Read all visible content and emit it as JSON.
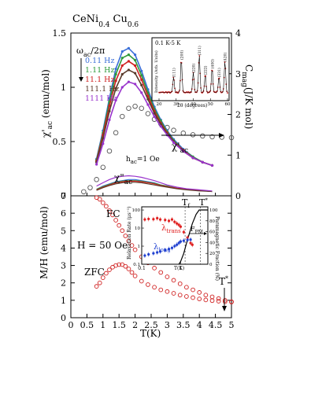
{
  "chart_data": [
    {
      "type": "line",
      "title": "CeNi0.4Cu0.6",
      "title_parts": {
        "base1": "CeNi",
        "sub1": "0.4",
        "base2": "Cu",
        "sub2": "0.6"
      },
      "xlim": [
        0,
        5
      ],
      "ylim": [
        0,
        1.5
      ],
      "ylabel": "χ'ac (emu/mol)",
      "ylabel_parts": {
        "base": "χ'",
        "sub": "ac",
        "unit": " (emu/mol)"
      },
      "y_ticks": [
        "0",
        "0.5",
        "1",
        "1.5"
      ],
      "y2lim": [
        0,
        4
      ],
      "y2label": "Cmag(J/K mol)",
      "y2label_parts": {
        "base": "C",
        "sub": "mag",
        "unit": "(J/K mol)"
      },
      "y2_ticks": [
        "0",
        "1",
        "2",
        "3",
        "4"
      ],
      "legend_title": "ωac/2π",
      "legend_title_parts": {
        "base": "ω",
        "sub": "ac",
        "rest": "/2π"
      },
      "hac_label": "hac=1 Oe",
      "hac_parts": {
        "base": "h",
        "sub": "ac",
        "rest": "=1 Oe"
      },
      "chi1_label": "χ'ac",
      "chi1_parts": {
        "base": "χ'",
        "sub": "ac"
      },
      "chi2_label": "χ\"ac",
      "chi2_parts": {
        "base": "χ\"",
        "sub": "ac"
      },
      "chi1_series": [
        {
          "name": "0.11 Hz",
          "color": "#3a6fd8",
          "x": [
            0.8,
            1.0,
            1.2,
            1.4,
            1.6,
            1.8,
            2.0,
            2.2,
            2.4,
            2.6,
            2.8,
            3.0,
            3.2,
            3.5,
            3.8,
            4.1,
            4.4
          ],
          "y": [
            0.34,
            0.6,
            0.9,
            1.17,
            1.33,
            1.36,
            1.3,
            1.15,
            0.98,
            0.82,
            0.7,
            0.6,
            0.52,
            0.43,
            0.36,
            0.31,
            0.28
          ]
        },
        {
          "name": "1.11 Hz",
          "color": "#2e9a3a",
          "x": [
            0.8,
            1.0,
            1.2,
            1.4,
            1.6,
            1.8,
            2.0,
            2.2,
            2.4,
            2.6,
            2.8,
            3.0,
            3.2,
            3.5,
            3.8,
            4.1,
            4.4
          ],
          "y": [
            0.33,
            0.58,
            0.87,
            1.12,
            1.27,
            1.3,
            1.25,
            1.11,
            0.95,
            0.8,
            0.69,
            0.59,
            0.51,
            0.42,
            0.36,
            0.31,
            0.28
          ]
        },
        {
          "name": "11.1 Hz",
          "color": "#d02020",
          "x": [
            0.8,
            1.0,
            1.2,
            1.4,
            1.6,
            1.8,
            2.0,
            2.2,
            2.4,
            2.6,
            2.8,
            3.0,
            3.2,
            3.5,
            3.8,
            4.1,
            4.4
          ],
          "y": [
            0.32,
            0.56,
            0.83,
            1.06,
            1.2,
            1.24,
            1.2,
            1.07,
            0.92,
            0.78,
            0.67,
            0.58,
            0.5,
            0.42,
            0.35,
            0.31,
            0.28
          ]
        },
        {
          "name": "111.1 Hz",
          "color": "#5a3a2a",
          "x": [
            0.8,
            1.0,
            1.2,
            1.4,
            1.6,
            1.8,
            2.0,
            2.2,
            2.4,
            2.6,
            2.8,
            3.0,
            3.2,
            3.5,
            3.8,
            4.1,
            4.4
          ],
          "y": [
            0.31,
            0.53,
            0.78,
            0.99,
            1.12,
            1.16,
            1.13,
            1.02,
            0.89,
            0.76,
            0.66,
            0.57,
            0.5,
            0.41,
            0.35,
            0.31,
            0.28
          ]
        },
        {
          "name": "1111 Hz",
          "color": "#9933cc",
          "x": [
            0.8,
            1.0,
            1.2,
            1.4,
            1.6,
            1.8,
            2.0,
            2.2,
            2.4,
            2.6,
            2.8,
            3.0,
            3.2,
            3.5,
            3.8,
            4.1,
            4.4
          ],
          "y": [
            0.29,
            0.48,
            0.7,
            0.88,
            1.0,
            1.05,
            1.03,
            0.95,
            0.84,
            0.73,
            0.64,
            0.56,
            0.49,
            0.41,
            0.35,
            0.31,
            0.28
          ]
        }
      ],
      "chi2_series": [
        {
          "name": "0.11 Hz",
          "color": "#3a6fd8",
          "x": [
            0.8,
            1.0,
            1.2,
            1.4,
            1.6,
            1.8,
            2.0,
            2.2,
            2.4,
            2.6,
            2.8,
            3.0,
            3.3,
            3.6,
            4.0,
            4.4
          ],
          "y": [
            0.06,
            0.09,
            0.11,
            0.13,
            0.14,
            0.15,
            0.15,
            0.14,
            0.13,
            0.12,
            0.1,
            0.09,
            0.07,
            0.06,
            0.05,
            0.04
          ]
        },
        {
          "name": "1.11 Hz",
          "color": "#2e9a3a",
          "x": [
            0.8,
            1.0,
            1.2,
            1.4,
            1.6,
            1.8,
            2.0,
            2.2,
            2.4,
            2.6,
            2.8,
            3.0,
            3.3,
            3.6,
            4.0,
            4.4
          ],
          "y": [
            0.06,
            0.085,
            0.105,
            0.125,
            0.135,
            0.14,
            0.14,
            0.135,
            0.125,
            0.115,
            0.1,
            0.09,
            0.07,
            0.06,
            0.05,
            0.04
          ]
        },
        {
          "name": "11.1 Hz",
          "color": "#d02020",
          "x": [
            0.8,
            1.0,
            1.2,
            1.4,
            1.6,
            1.8,
            2.0,
            2.2,
            2.4,
            2.6,
            2.8,
            3.0,
            3.3,
            3.6,
            4.0,
            4.4
          ],
          "y": [
            0.055,
            0.08,
            0.1,
            0.12,
            0.13,
            0.135,
            0.135,
            0.13,
            0.12,
            0.11,
            0.095,
            0.085,
            0.07,
            0.06,
            0.05,
            0.04
          ]
        },
        {
          "name": "111.1 Hz",
          "color": "#5a3a2a",
          "x": [
            0.8,
            1.0,
            1.2,
            1.4,
            1.6,
            1.8,
            2.0,
            2.2,
            2.4,
            2.6,
            2.8,
            3.0,
            3.3,
            3.6,
            4.0,
            4.4
          ],
          "y": [
            0.05,
            0.075,
            0.095,
            0.11,
            0.12,
            0.125,
            0.125,
            0.12,
            0.11,
            0.1,
            0.09,
            0.08,
            0.065,
            0.055,
            0.045,
            0.04
          ]
        },
        {
          "name": "1111 Hz",
          "color": "#9933cc",
          "x": [
            0.8,
            1.0,
            1.2,
            1.4,
            1.6,
            1.8,
            2.0,
            2.2,
            2.4,
            2.6,
            2.8,
            3.0,
            3.3,
            3.6,
            4.0,
            4.4
          ],
          "y": [
            0.09,
            0.12,
            0.15,
            0.17,
            0.18,
            0.185,
            0.18,
            0.17,
            0.155,
            0.14,
            0.12,
            0.1,
            0.08,
            0.065,
            0.055,
            0.045
          ]
        }
      ],
      "cmag": {
        "color": "#555555",
        "x": [
          0.4,
          0.6,
          0.8,
          1.0,
          1.2,
          1.4,
          1.6,
          1.8,
          2.0,
          2.2,
          2.4,
          2.6,
          2.8,
          3.0,
          3.2,
          3.5,
          3.8,
          4.1,
          4.4,
          4.7,
          5.0
        ],
        "y": [
          0.1,
          0.2,
          0.4,
          0.7,
          1.1,
          1.55,
          1.95,
          2.15,
          2.2,
          2.15,
          2.02,
          1.88,
          1.77,
          1.68,
          1.61,
          1.54,
          1.5,
          1.47,
          1.45,
          1.44,
          1.43
        ]
      },
      "inset": {
        "label": "0.1 K-5 K",
        "xlabel": "2θ (degrees)",
        "ylabel": "Intensity (Arb. Units)",
        "xlim": [
          20,
          60
        ],
        "x_ticks": [
          "20",
          "30",
          "40",
          "50",
          "60"
        ],
        "peak_labels": [
          "(111)",
          "(200)",
          "(220)",
          "(311)",
          "(222)",
          "(400)",
          "(331)",
          "(420)"
        ],
        "peaks_x": [
          26.5,
          30.5,
          43.8,
          51.7,
          54.3,
          63,
          58.5,
          59.5
        ]
      }
    },
    {
      "type": "scatter",
      "xlabel": "T(K)",
      "ylabel": "M/H (emu/mol)",
      "xlim": [
        0,
        5
      ],
      "ylim": [
        0,
        7
      ],
      "x_ticks": [
        "0",
        "0.5",
        "1",
        "1.5",
        "2",
        "2.5",
        "3",
        "3.5",
        "4",
        "4.5",
        "5"
      ],
      "y_ticks": [
        "0",
        "1",
        "2",
        "3",
        "4",
        "5",
        "6",
        "7"
      ],
      "field_label": "H = 50 Oe",
      "fc_label": "FC",
      "zfc_label": "ZFC",
      "tstar_label": "T*",
      "tstar_parts": {
        "base": "T",
        "sup": "*"
      },
      "series": [
        {
          "name": "FC",
          "color": "#d02020",
          "x": [
            0.8,
            0.9,
            1.0,
            1.1,
            1.2,
            1.3,
            1.4,
            1.5,
            1.6,
            1.7,
            1.8,
            1.9,
            2.0,
            2.2,
            2.4,
            2.6,
            2.8,
            3.0,
            3.2,
            3.4,
            3.6,
            3.8,
            4.0,
            4.2,
            4.4,
            4.6,
            4.8,
            5.0
          ],
          "y": [
            6.9,
            6.8,
            6.6,
            6.4,
            6.15,
            5.9,
            5.6,
            5.3,
            5.0,
            4.7,
            4.4,
            4.15,
            3.9,
            3.5,
            3.15,
            2.85,
            2.6,
            2.35,
            2.15,
            1.95,
            1.75,
            1.6,
            1.45,
            1.3,
            1.2,
            1.1,
            1.0,
            0.92
          ]
        },
        {
          "name": "ZFC",
          "color": "#d02020",
          "x": [
            0.8,
            0.9,
            1.0,
            1.1,
            1.2,
            1.3,
            1.4,
            1.5,
            1.6,
            1.7,
            1.8,
            1.9,
            2.0,
            2.2,
            2.4,
            2.6,
            2.8,
            3.0,
            3.2,
            3.4,
            3.6,
            3.8,
            4.0,
            4.2,
            4.4,
            4.6,
            4.8,
            5.0
          ],
          "y": [
            1.8,
            2.0,
            2.3,
            2.55,
            2.75,
            2.9,
            3.0,
            3.05,
            3.05,
            2.95,
            2.8,
            2.6,
            2.4,
            2.1,
            1.9,
            1.75,
            1.6,
            1.5,
            1.4,
            1.3,
            1.22,
            1.15,
            1.08,
            1.02,
            0.98,
            0.95,
            0.92,
            0.9
          ]
        }
      ],
      "inset": {
        "xlabel": "T(K)",
        "ylabel": "Relaxation Rate (μs⁻¹)",
        "y2label": "Paramagnetic Fraction (%)",
        "x_ticks": [
          "0.1",
          "1"
        ],
        "y_ticks": [
          "0.1",
          "1",
          "10",
          "100"
        ],
        "y2_ticks": [
          "0",
          "20",
          "40",
          "60",
          "80",
          "100"
        ],
        "tf_label": "Tf",
        "tf_parts": {
          "base": "T",
          "sub": "f"
        },
        "tstar_label": "T*",
        "tstar_parts": {
          "base": "T",
          "sup": "*"
        },
        "fpm_label": "FPM",
        "fpm_parts": {
          "base": "F",
          "sub": "PM"
        },
        "trans_label": "λtrans",
        "trans_parts": {
          "base": "λ",
          "sub": "trans"
        },
        "long_label": "λlong",
        "long_parts": {
          "base": "λ",
          "sub": "long"
        },
        "trans": {
          "color": "#e02020",
          "x": [
            0.12,
            0.15,
            0.2,
            0.25,
            0.3,
            0.4,
            0.5,
            0.6,
            0.7,
            0.8,
            0.9,
            1.0,
            1.2,
            1.5,
            1.8,
            2.0
          ],
          "y": [
            30,
            32,
            31,
            35,
            30,
            28,
            25,
            30,
            22,
            18,
            15,
            12,
            6,
            3,
            1.5,
            1.2
          ]
        },
        "long": {
          "color": "#2040d0",
          "x": [
            0.12,
            0.15,
            0.2,
            0.25,
            0.3,
            0.4,
            0.5,
            0.6,
            0.7,
            0.8,
            0.9,
            1.0,
            1.2,
            1.5,
            1.8
          ],
          "y": [
            0.3,
            0.35,
            0.4,
            0.45,
            0.5,
            0.6,
            0.7,
            0.8,
            1.0,
            1.2,
            1.5,
            1.8,
            2.0,
            2.2,
            2.3
          ]
        },
        "fraction": {
          "color": "#000000",
          "x": [
            0.9,
            1.0,
            1.2,
            1.5,
            2.0,
            2.5,
            3.0,
            4.0,
            5.0
          ],
          "y": [
            0,
            5,
            20,
            45,
            75,
            92,
            100,
            100,
            100
          ]
        }
      }
    }
  ]
}
